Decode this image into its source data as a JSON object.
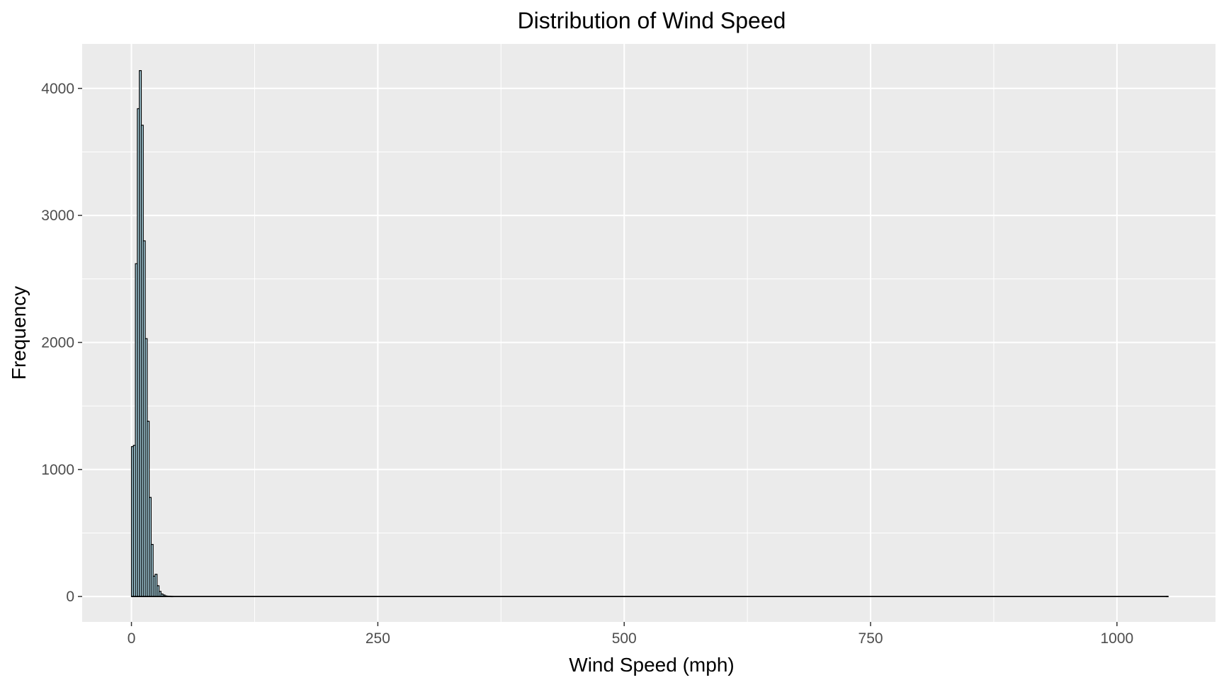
{
  "chart_data": {
    "type": "bar",
    "title": "Distribution of Wind Speed",
    "xlabel": "Wind Speed (mph)",
    "ylabel": "Frequency",
    "xlim": [
      -50,
      1100
    ],
    "ylim": [
      -200,
      4350
    ],
    "x_ticks": [
      0,
      250,
      500,
      750,
      1000
    ],
    "x_tick_labels": [
      "0",
      "250",
      "500",
      "750",
      "1000"
    ],
    "y_ticks": [
      0,
      1000,
      2000,
      3000,
      4000
    ],
    "y_tick_labels": [
      "0",
      "1000",
      "2000",
      "3000",
      "4000"
    ],
    "grid": true,
    "panel_background": "#ebebeb",
    "grid_color": "#ffffff",
    "bar_fill": "#add8e6",
    "bar_outline": "#000000",
    "bin_width": 2,
    "bins_start": 0,
    "bin_end": 1052,
    "counts": [
      1180,
      1190,
      2620,
      3840,
      4140,
      3710,
      2800,
      2030,
      1380,
      780,
      410,
      160,
      175,
      85,
      40,
      20,
      12,
      5,
      3,
      2,
      1
    ],
    "outlier_bins": [
      {
        "x": 1050,
        "count": 1
      }
    ]
  }
}
